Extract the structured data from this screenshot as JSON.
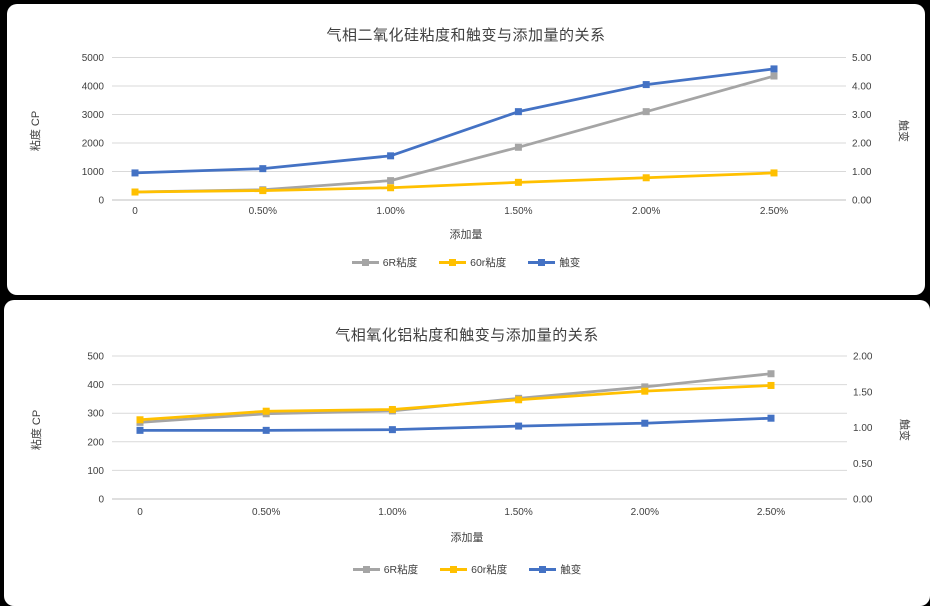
{
  "page": {
    "background": "#000000",
    "panel_background": "#ffffff"
  },
  "colors": {
    "gridline": "#d9d9d9",
    "axis_line": "#bfbfbf",
    "text": "#404040"
  },
  "chart_data": [
    {
      "type": "line",
      "title": "气相二氧化硅粘度和触变与添加量的关系",
      "legend_position": "bottom",
      "grid": true,
      "x_axis": {
        "label": "添加量",
        "categories": [
          "0",
          "0.50%",
          "1.00%",
          "1.50%",
          "2.00%",
          "2.50%"
        ]
      },
      "y_left": {
        "label": "粘度 CP",
        "min": 0,
        "max": 5000,
        "ticks": [
          "0",
          "1000",
          "2000",
          "3000",
          "4000",
          "5000"
        ]
      },
      "y_right": {
        "label": "触变",
        "min": 0,
        "max": 5,
        "ticks": [
          "0.00",
          "1.00",
          "2.00",
          "3.00",
          "4.00",
          "5.00"
        ]
      },
      "series": [
        {
          "name": "6R粘度",
          "color": "#a5a5a5",
          "axis": "left",
          "values": [
            280,
            360,
            680,
            1850,
            3100,
            4350
          ]
        },
        {
          "name": "60r粘度",
          "color": "#ffc000",
          "axis": "left",
          "values": [
            280,
            330,
            430,
            620,
            780,
            950
          ]
        },
        {
          "name": "触变",
          "color": "#4472c4",
          "axis": "right",
          "values": [
            0.95,
            1.1,
            1.55,
            3.1,
            4.05,
            4.6
          ]
        }
      ]
    },
    {
      "type": "line",
      "title": "气相氧化铝粘度和触变与添加量的关系",
      "legend_position": "bottom",
      "grid": true,
      "x_axis": {
        "label": "添加量",
        "categories": [
          "0",
          "0.50%",
          "1.00%",
          "1.50%",
          "2.00%",
          "2.50%"
        ]
      },
      "y_left": {
        "label": "粘度 CP",
        "min": 0,
        "max": 500,
        "ticks": [
          "0",
          "100",
          "200",
          "300",
          "400",
          "500"
        ]
      },
      "y_right": {
        "label": "触变",
        "min": 0,
        "max": 2,
        "ticks": [
          "0.00",
          "0.50",
          "1.00",
          "1.50",
          "2.00"
        ]
      },
      "series": [
        {
          "name": "6R粘度",
          "color": "#a5a5a5",
          "axis": "left",
          "values": [
            268,
            298,
            308,
            352,
            392,
            438
          ]
        },
        {
          "name": "60r粘度",
          "color": "#ffc000",
          "axis": "left",
          "values": [
            277,
            307,
            313,
            347,
            377,
            397
          ]
        },
        {
          "name": "触变",
          "color": "#4472c4",
          "axis": "right",
          "values": [
            0.96,
            0.96,
            0.97,
            1.02,
            1.06,
            1.13
          ]
        }
      ]
    }
  ]
}
